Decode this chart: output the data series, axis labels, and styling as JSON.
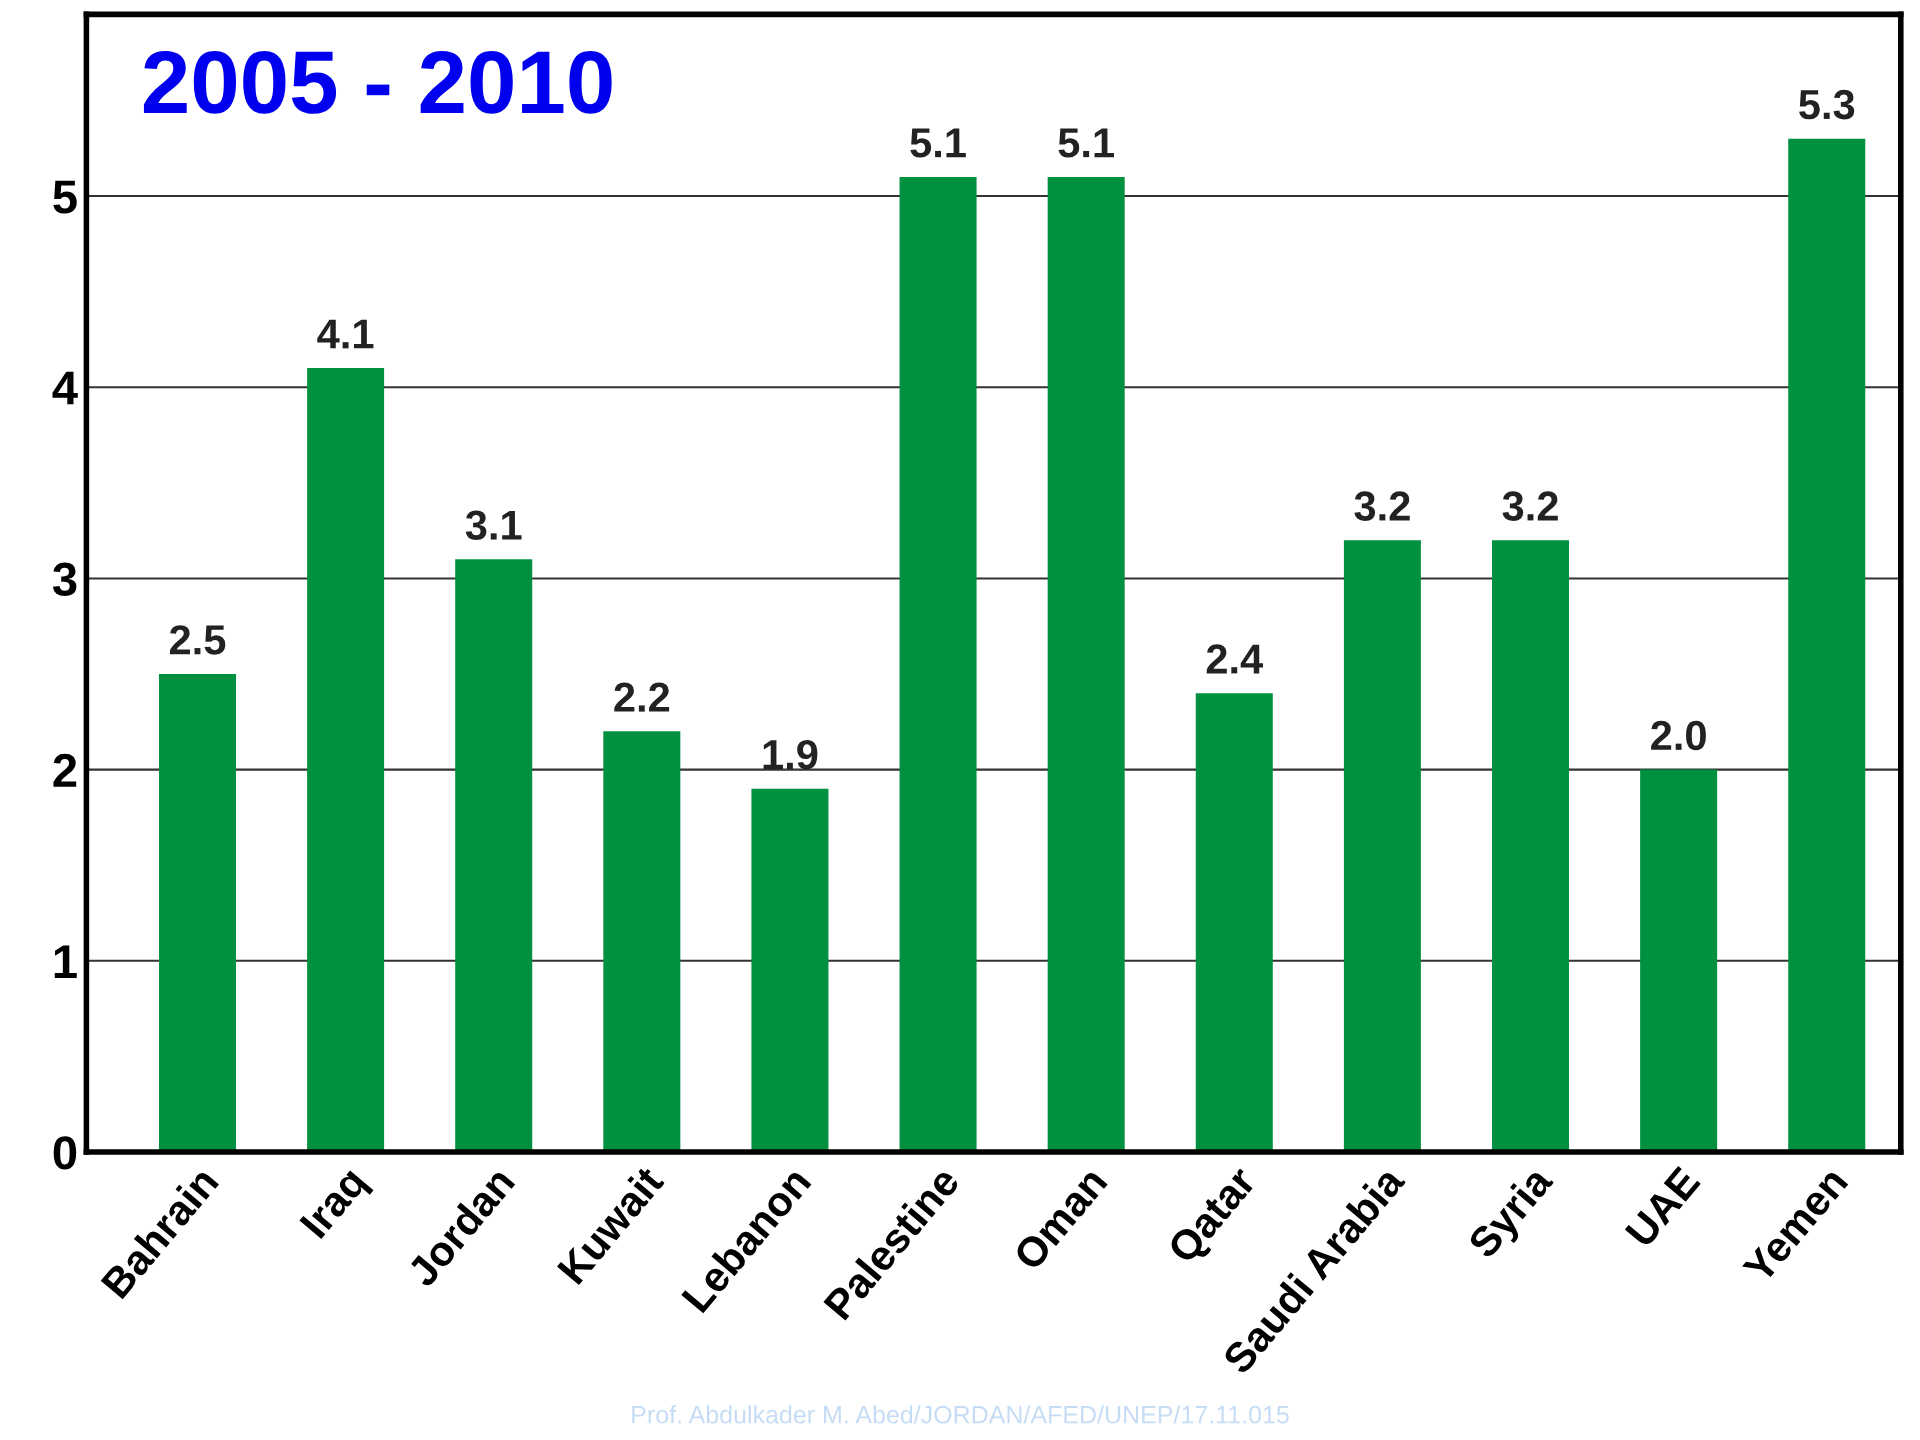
{
  "chart_data": {
    "type": "bar",
    "title": "2005 - 2010",
    "categories": [
      "Bahrain",
      "Iraq",
      "Jordan",
      "Kuwait",
      "Lebanon",
      "Palestine",
      "Oman",
      "Qatar",
      "Saudi Arabia",
      "Syria",
      "UAE",
      "Yemen"
    ],
    "values": [
      2.5,
      4.1,
      3.1,
      2.2,
      1.9,
      5.1,
      5.1,
      2.4,
      3.2,
      3.2,
      2.0,
      5.3
    ],
    "value_labels": [
      "2.5",
      "4.1",
      "3.1",
      "2.2",
      "1.9",
      "5.1",
      "5.1",
      "2.4",
      "3.2",
      "3.2",
      "2.0",
      "5.3"
    ],
    "color": "#009140",
    "ylim": [
      0,
      5.95
    ],
    "yticks": [
      0,
      1,
      2,
      3,
      4,
      5
    ],
    "grid": "y",
    "annotations": [
      "Prof. Abdulkader M. Abed/JORDAN/AFED/UNEP/17.11.015"
    ]
  }
}
